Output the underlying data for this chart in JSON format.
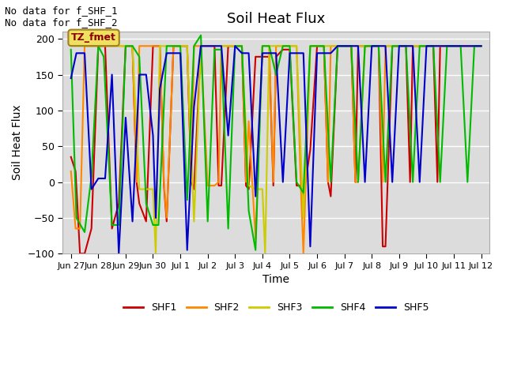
{
  "title": "Soil Heat Flux",
  "xlabel": "Time",
  "ylabel": "Soil Heat Flux",
  "ylim": [
    -100,
    210
  ],
  "yticks": [
    -100,
    -50,
    0,
    50,
    100,
    150,
    200
  ],
  "background_color": "#dcdcdc",
  "annotation_line1": "No data for f_SHF_1",
  "annotation_line2": "No data for f_SHF_2",
  "label_text": "TZ_fmet",
  "xtick_labels": [
    "Jun 27",
    "Jun 28",
    "Jun 29",
    "Jun 30",
    "Jul 1",
    "Jul 2",
    "Jul 3",
    "Jul 4",
    "Jul 5",
    "Jul 6",
    "Jul 7",
    "Jul 8",
    "Jul 9",
    "Jul 10",
    "Jul 11",
    "Jul 12"
  ],
  "legend_entries": [
    {
      "label": "SHF1",
      "color": "#cc0000"
    },
    {
      "label": "SHF2",
      "color": "#ff8800"
    },
    {
      "label": "SHF3",
      "color": "#cccc00"
    },
    {
      "label": "SHF4",
      "color": "#00bb00"
    },
    {
      "label": "SHF5",
      "color": "#0000cc"
    }
  ],
  "SHF1_x": [
    0.0,
    0.17,
    0.33,
    0.5,
    0.75,
    1.0,
    1.25,
    1.5,
    1.75,
    2.0,
    2.25,
    2.4,
    2.5,
    2.75,
    3.0,
    3.25,
    3.4,
    3.5,
    3.75,
    4.0,
    4.25,
    4.4,
    4.5,
    4.75,
    5.0,
    5.25,
    5.4,
    5.5,
    5.75,
    6.0,
    6.25,
    6.4,
    6.5,
    6.75,
    7.0,
    7.25,
    7.4,
    7.5,
    7.75,
    8.0,
    8.25,
    8.4,
    8.5,
    8.75,
    9.0,
    9.25,
    9.4,
    9.5,
    9.75,
    10.0,
    10.25,
    10.4,
    10.5,
    10.75,
    11.0,
    11.25,
    11.4,
    11.5,
    11.75,
    12.0,
    12.25,
    12.4,
    12.5,
    12.75,
    13.0,
    13.25,
    13.4,
    13.5,
    13.75,
    14.0,
    14.25,
    14.5,
    14.75,
    15.0
  ],
  "SHF1_y": [
    35,
    15,
    -100,
    -100,
    -65,
    190,
    190,
    -65,
    -30,
    190,
    190,
    0,
    -30,
    -55,
    190,
    190,
    -5,
    -55,
    190,
    190,
    190,
    0,
    -10,
    190,
    190,
    190,
    -5,
    -5,
    190,
    190,
    190,
    -5,
    -10,
    175,
    175,
    175,
    -5,
    175,
    185,
    185,
    -5,
    -5,
    -20,
    45,
    190,
    190,
    0,
    -20,
    190,
    190,
    190,
    0,
    190,
    190,
    190,
    190,
    -90,
    -90,
    190,
    190,
    190,
    0,
    190,
    190,
    190,
    190,
    0,
    190,
    190,
    190,
    190,
    190,
    190,
    190
  ],
  "SHF2_x": [
    0.0,
    0.17,
    0.33,
    0.5,
    0.75,
    1.0,
    1.25,
    1.5,
    1.75,
    2.0,
    2.25,
    2.4,
    2.5,
    2.75,
    3.0,
    3.25,
    3.4,
    3.5,
    3.75,
    4.0,
    4.25,
    4.4,
    4.5,
    4.75,
    5.0,
    5.25,
    5.4,
    5.5,
    5.75,
    6.0,
    6.25,
    6.4,
    6.5,
    6.75,
    7.0,
    7.25,
    7.4,
    7.5,
    7.75,
    8.0,
    8.25,
    8.4,
    8.5,
    8.75,
    9.0,
    9.25,
    9.4,
    9.5,
    9.75,
    10.0,
    10.25,
    10.4,
    10.5,
    10.75,
    11.0,
    11.25,
    11.4,
    11.5,
    11.75,
    12.0,
    12.25,
    12.5,
    12.75,
    13.0,
    13.25,
    13.5,
    13.75,
    14.0,
    14.5,
    15.0
  ],
  "SHF2_y": [
    15,
    -65,
    -65,
    190,
    190,
    190,
    190,
    190,
    190,
    190,
    190,
    0,
    190,
    190,
    190,
    190,
    0,
    -50,
    190,
    190,
    190,
    0,
    190,
    190,
    -5,
    -5,
    0,
    190,
    190,
    190,
    190,
    0,
    85,
    -80,
    190,
    190,
    0,
    190,
    190,
    190,
    190,
    0,
    -100,
    190,
    190,
    190,
    0,
    190,
    190,
    190,
    190,
    0,
    0,
    190,
    190,
    190,
    0,
    190,
    190,
    190,
    190,
    190,
    190,
    190,
    190,
    190,
    190,
    190,
    190,
    190
  ],
  "SHF3_x": [
    0.0,
    0.25,
    0.5,
    0.75,
    1.0,
    1.25,
    1.5,
    1.75,
    2.0,
    2.25,
    2.5,
    2.75,
    3.0,
    3.1,
    3.25,
    3.5,
    3.75,
    4.0,
    4.25,
    4.5,
    4.75,
    5.0,
    5.25,
    5.5,
    5.75,
    6.0,
    6.25,
    6.5,
    6.75,
    7.0,
    7.1,
    7.25,
    7.5,
    7.75,
    8.0,
    8.25,
    8.5,
    8.75,
    9.0,
    9.25,
    9.5,
    9.75,
    10.0,
    10.25,
    10.5,
    10.75,
    11.0,
    11.25,
    11.5,
    11.75,
    12.0,
    12.25,
    12.5,
    12.75,
    13.0,
    13.25,
    13.5,
    13.75,
    14.0,
    14.25,
    14.5,
    14.75,
    15.0
  ],
  "SHF3_y": [
    190,
    190,
    190,
    190,
    190,
    190,
    190,
    190,
    190,
    190,
    -10,
    -10,
    -10,
    -100,
    190,
    190,
    190,
    190,
    190,
    -55,
    190,
    190,
    190,
    190,
    190,
    190,
    190,
    -5,
    -10,
    -10,
    -100,
    190,
    190,
    190,
    190,
    190,
    -50,
    190,
    190,
    190,
    190,
    190,
    190,
    190,
    190,
    190,
    190,
    190,
    190,
    190,
    190,
    190,
    190,
    190,
    190,
    190,
    190,
    190,
    190,
    190,
    190,
    190,
    190
  ],
  "SHF4_x": [
    0.0,
    0.2,
    0.5,
    0.75,
    1.0,
    1.2,
    1.5,
    1.75,
    2.0,
    2.25,
    2.5,
    2.75,
    3.0,
    3.2,
    3.5,
    3.75,
    4.0,
    4.25,
    4.5,
    4.75,
    5.0,
    5.25,
    5.5,
    5.75,
    6.0,
    6.25,
    6.5,
    6.75,
    7.0,
    7.25,
    7.5,
    7.75,
    8.0,
    8.25,
    8.5,
    8.75,
    9.0,
    9.25,
    9.5,
    9.75,
    10.0,
    10.25,
    10.5,
    10.75,
    11.0,
    11.25,
    11.5,
    11.75,
    12.0,
    12.25,
    12.5,
    12.75,
    13.0,
    13.25,
    13.5,
    13.75,
    14.0,
    14.25,
    14.5,
    14.75,
    15.0
  ],
  "SHF4_y": [
    185,
    -50,
    -70,
    8,
    190,
    175,
    -60,
    -60,
    190,
    190,
    175,
    -30,
    -60,
    -60,
    190,
    190,
    190,
    -25,
    190,
    205,
    -55,
    185,
    185,
    -65,
    190,
    190,
    -40,
    -95,
    190,
    190,
    150,
    190,
    190,
    0,
    -15,
    190,
    190,
    190,
    0,
    190,
    190,
    190,
    0,
    190,
    190,
    190,
    0,
    190,
    190,
    190,
    0,
    190,
    190,
    190,
    0,
    190,
    190,
    190,
    0,
    190,
    190
  ],
  "SHF5_x": [
    0.0,
    0.2,
    0.5,
    0.75,
    1.0,
    1.25,
    1.5,
    1.75,
    2.0,
    2.25,
    2.5,
    2.75,
    3.0,
    3.1,
    3.25,
    3.5,
    3.75,
    4.0,
    4.25,
    4.5,
    4.75,
    5.0,
    5.25,
    5.5,
    5.75,
    6.0,
    6.25,
    6.5,
    6.75,
    7.0,
    7.25,
    7.5,
    7.75,
    8.0,
    8.25,
    8.5,
    8.75,
    9.0,
    9.25,
    9.5,
    9.75,
    10.0,
    10.25,
    10.5,
    10.75,
    11.0,
    11.25,
    11.5,
    11.75,
    12.0,
    12.25,
    12.5,
    12.75,
    13.0,
    13.5,
    14.0,
    14.5,
    15.0
  ],
  "SHF5_y": [
    145,
    180,
    180,
    -10,
    5,
    5,
    150,
    -100,
    90,
    -55,
    150,
    150,
    65,
    -50,
    130,
    180,
    180,
    180,
    -95,
    105,
    190,
    190,
    190,
    190,
    65,
    190,
    180,
    180,
    -20,
    180,
    180,
    180,
    0,
    180,
    180,
    180,
    -90,
    180,
    180,
    180,
    190,
    190,
    190,
    190,
    0,
    190,
    190,
    190,
    0,
    190,
    190,
    190,
    0,
    190,
    190,
    190,
    190,
    190
  ]
}
